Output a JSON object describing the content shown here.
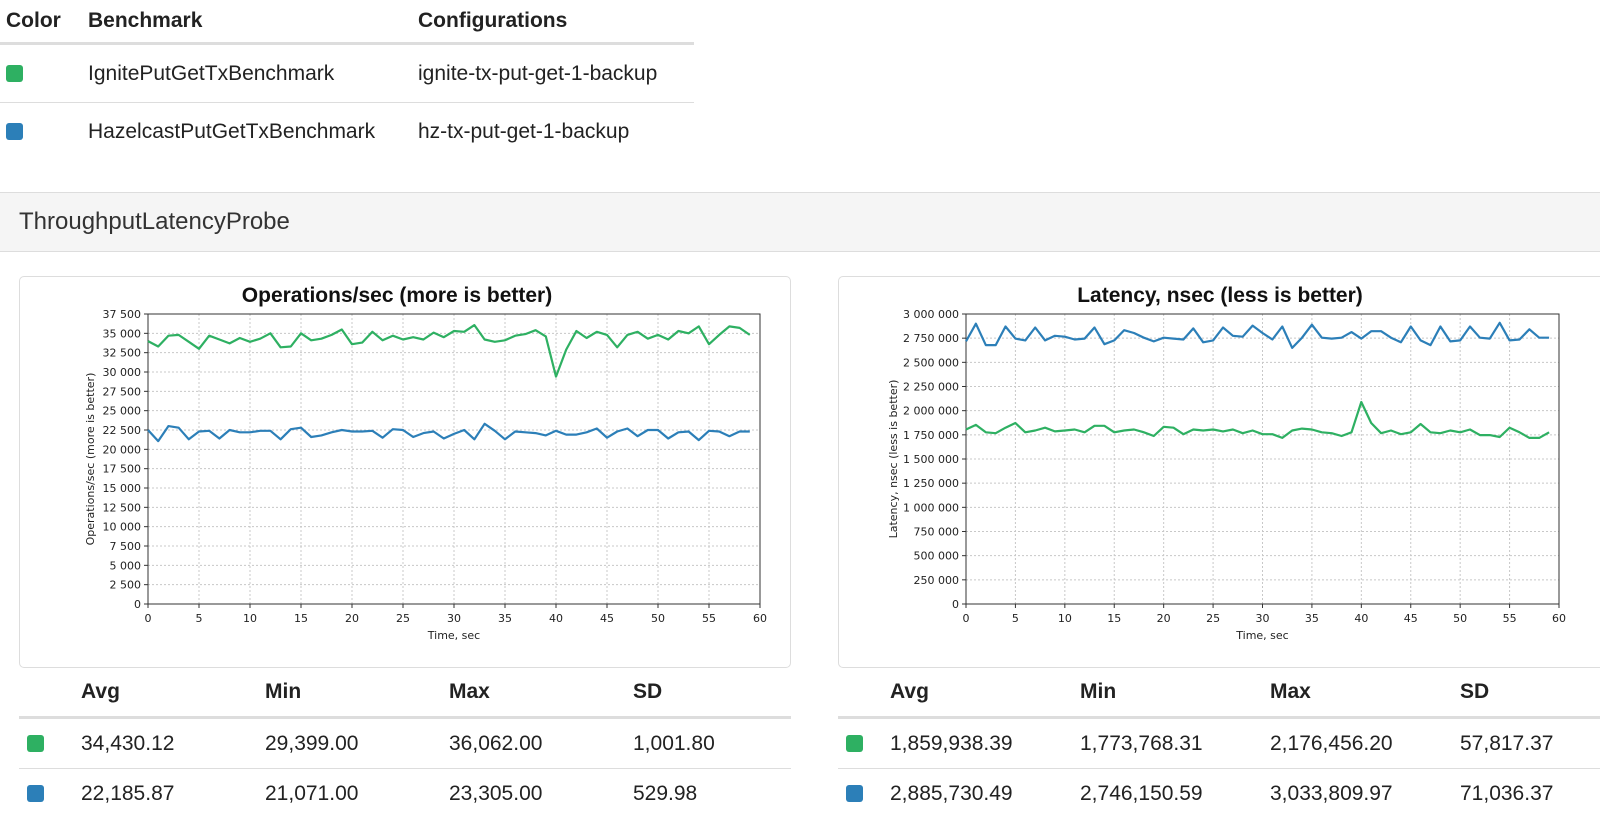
{
  "benchmarks": {
    "headers": {
      "color": "Color",
      "benchmark": "Benchmark",
      "configurations": "Configurations"
    },
    "rows": [
      {
        "color": "#2eb062",
        "benchmark": "IgnitePutGetTxBenchmark",
        "configuration": "ignite-tx-put-get-1-backup"
      },
      {
        "color": "#2c7fb8",
        "benchmark": "HazelcastPutGetTxBenchmark",
        "configuration": "hz-tx-put-get-1-backup"
      }
    ]
  },
  "section": {
    "title": "ThroughputLatencyProbe"
  },
  "stats_headers": {
    "avg": "Avg",
    "min": "Min",
    "max": "Max",
    "sd": "SD"
  },
  "stats": [
    {
      "rows": [
        {
          "color": "#2eb062",
          "avg": "34,430.12",
          "min": "29,399.00",
          "max": "36,062.00",
          "sd": "1,001.80"
        },
        {
          "color": "#2c7fb8",
          "avg": "22,185.87",
          "min": "21,071.00",
          "max": "23,305.00",
          "sd": "529.98"
        }
      ]
    },
    {
      "rows": [
        {
          "color": "#2eb062",
          "avg": "1,859,938.39",
          "min": "1,773,768.31",
          "max": "2,176,456.20",
          "sd": "57,817.37"
        },
        {
          "color": "#2c7fb8",
          "avg": "2,885,730.49",
          "min": "2,746,150.59",
          "max": "3,033,809.97",
          "sd": "71,036.37"
        }
      ]
    }
  ],
  "chart_data": [
    {
      "type": "line",
      "title": "Operations/sec (more is better)",
      "xlabel": "Time, sec",
      "ylabel": "Operations/sec (more is better)",
      "xlim": [
        0,
        60
      ],
      "ylim": [
        0,
        37500
      ],
      "x_ticks": [
        "0",
        "5",
        "10",
        "15",
        "20",
        "25",
        "30",
        "35",
        "40",
        "45",
        "50",
        "55",
        "60"
      ],
      "y_ticks": [
        "0",
        "2 500",
        "5 000",
        "7 500",
        "10 000",
        "12 500",
        "15 000",
        "17 500",
        "20 000",
        "22 500",
        "25 000",
        "27 500",
        "30 000",
        "32 500",
        "35 000",
        "37 500"
      ],
      "grid": true,
      "series": [
        {
          "color": "#2eb062",
          "x": [
            0,
            1,
            2,
            3,
            4,
            5,
            6,
            7,
            8,
            9,
            10,
            11,
            12,
            13,
            14,
            15,
            16,
            17,
            18,
            19,
            20,
            21,
            22,
            23,
            24,
            25,
            26,
            27,
            28,
            29,
            30,
            31,
            32,
            33,
            34,
            35,
            36,
            37,
            38,
            39,
            40,
            41,
            42,
            43,
            44,
            45,
            46,
            47,
            48,
            49,
            50,
            51,
            52,
            53,
            54,
            55,
            56,
            57,
            58,
            59
          ],
          "values": [
            34000,
            33300,
            34700,
            34800,
            33900,
            33000,
            34700,
            34200,
            33700,
            34400,
            33900,
            34300,
            35000,
            33200,
            33300,
            35000,
            34100,
            34300,
            34800,
            35500,
            33600,
            33800,
            35200,
            34100,
            34700,
            34200,
            34500,
            34200,
            35100,
            34500,
            35300,
            35200,
            36062,
            34200,
            33900,
            34100,
            34700,
            34900,
            35400,
            34600,
            29399,
            32900,
            35300,
            34400,
            35200,
            34800,
            33200,
            34800,
            35200,
            34300,
            34800,
            34200,
            35300,
            35000,
            35900,
            33600,
            34800,
            35900,
            35700,
            34800
          ]
        },
        {
          "color": "#2c7fb8",
          "x": [
            0,
            1,
            2,
            3,
            4,
            5,
            6,
            7,
            8,
            9,
            10,
            11,
            12,
            13,
            14,
            15,
            16,
            17,
            18,
            19,
            20,
            21,
            22,
            23,
            24,
            25,
            26,
            27,
            28,
            29,
            30,
            31,
            32,
            33,
            34,
            35,
            36,
            37,
            38,
            39,
            40,
            41,
            42,
            43,
            44,
            45,
            46,
            47,
            48,
            49,
            50,
            51,
            52,
            53,
            54,
            55,
            56,
            57,
            58,
            59
          ],
          "values": [
            22500,
            21071,
            23000,
            22800,
            21300,
            22300,
            22400,
            21400,
            22500,
            22200,
            22200,
            22400,
            22400,
            21300,
            22600,
            22800,
            21600,
            21800,
            22200,
            22500,
            22300,
            22300,
            22400,
            21500,
            22600,
            22500,
            21600,
            22100,
            22300,
            21400,
            22000,
            22500,
            21300,
            23305,
            22400,
            21300,
            22300,
            22200,
            22100,
            21800,
            22400,
            21900,
            21900,
            22200,
            22700,
            21500,
            22300,
            22700,
            21700,
            22500,
            22500,
            21400,
            22200,
            22300,
            21200,
            22400,
            22300,
            21700,
            22300,
            22300
          ]
        }
      ]
    },
    {
      "type": "line",
      "title": "Latency, nsec (less is better)",
      "xlabel": "Time, sec",
      "ylabel": "Latency, nsec (less is better)",
      "xlim": [
        0,
        60
      ],
      "ylim": [
        0,
        3125000
      ],
      "x_ticks": [
        "0",
        "5",
        "10",
        "15",
        "20",
        "25",
        "30",
        "35",
        "40",
        "45",
        "50",
        "55",
        "60"
      ],
      "y_ticks": [
        "0",
        "250 000",
        "500 000",
        "750 000",
        "1 000 000",
        "1 250 000",
        "1 500 000",
        "1 750 000",
        "2 000 000",
        "2 250 000",
        "2 500 000",
        "2 750 000",
        "3 000 000"
      ],
      "grid": true,
      "series": [
        {
          "color": "#2eb062",
          "x": [
            0,
            1,
            2,
            3,
            4,
            5,
            6,
            7,
            8,
            9,
            10,
            11,
            12,
            13,
            14,
            15,
            16,
            17,
            18,
            19,
            20,
            21,
            22,
            23,
            24,
            25,
            26,
            27,
            28,
            29,
            30,
            31,
            32,
            33,
            34,
            35,
            36,
            37,
            38,
            39,
            40,
            41,
            42,
            43,
            44,
            45,
            46,
            47,
            48,
            49,
            50,
            51,
            52,
            53,
            54,
            55,
            56,
            57,
            58,
            59
          ],
          "values": [
            1880000,
            1930000,
            1850000,
            1840000,
            1900000,
            1950000,
            1850000,
            1870000,
            1900000,
            1860000,
            1870000,
            1880000,
            1850000,
            1920000,
            1920000,
            1850000,
            1870000,
            1880000,
            1850000,
            1810000,
            1910000,
            1900000,
            1830000,
            1880000,
            1870000,
            1880000,
            1860000,
            1880000,
            1840000,
            1870000,
            1830000,
            1830000,
            1790000,
            1870000,
            1890000,
            1880000,
            1850000,
            1840000,
            1810000,
            1850000,
            2176456,
            1950000,
            1840000,
            1870000,
            1830000,
            1850000,
            1940000,
            1850000,
            1840000,
            1870000,
            1850000,
            1880000,
            1820000,
            1820000,
            1800000,
            1900000,
            1850000,
            1790000,
            1790000,
            1850000
          ]
        },
        {
          "color": "#2c7fb8",
          "x": [
            0,
            1,
            2,
            3,
            4,
            5,
            6,
            7,
            8,
            9,
            10,
            11,
            12,
            13,
            14,
            15,
            16,
            17,
            18,
            19,
            20,
            21,
            22,
            23,
            24,
            25,
            26,
            27,
            28,
            29,
            30,
            31,
            32,
            33,
            34,
            35,
            36,
            37,
            38,
            39,
            40,
            41,
            42,
            43,
            44,
            45,
            46,
            47,
            48,
            49,
            50,
            51,
            52,
            53,
            54,
            55,
            56,
            57,
            58,
            59
          ],
          "values": [
            2830000,
            3020000,
            2790000,
            2790000,
            2990000,
            2860000,
            2840000,
            2980000,
            2840000,
            2890000,
            2880000,
            2850000,
            2860000,
            2980000,
            2800000,
            2840000,
            2950000,
            2920000,
            2870000,
            2830000,
            2870000,
            2860000,
            2850000,
            2970000,
            2820000,
            2840000,
            2980000,
            2890000,
            2880000,
            3000000,
            2920000,
            2850000,
            2990000,
            2760000,
            2870000,
            3010000,
            2870000,
            2860000,
            2870000,
            2930000,
            2860000,
            2940000,
            2940000,
            2870000,
            2820000,
            2990000,
            2840000,
            2790000,
            2990000,
            2830000,
            2840000,
            2990000,
            2870000,
            2860000,
            3030000,
            2840000,
            2850000,
            2960000,
            2870000,
            2870000
          ]
        }
      ]
    }
  ]
}
